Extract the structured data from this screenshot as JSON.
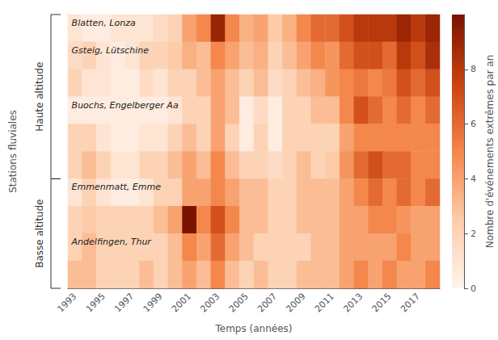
{
  "chart_data": {
    "type": "heatmap",
    "xlabel": "Temps (années)",
    "ylabel": "Stations fluviales",
    "categories": [
      1993,
      null,
      1995,
      null,
      1997,
      null,
      1999,
      null,
      2001,
      null,
      2003,
      null,
      2005,
      null,
      2007,
      null,
      2009,
      null,
      2011,
      null,
      2013,
      null,
      2015,
      null,
      2017,
      null
    ],
    "values": [
      [
        1.0,
        0.5,
        0.5,
        1.0,
        1.0,
        1.0,
        1.5,
        2.0,
        4.0,
        5.0,
        9.0,
        5.0,
        3.5,
        4.0,
        2.5,
        3.5,
        5.0,
        6.0,
        6.0,
        7.0,
        8.0,
        8.0,
        8.0,
        9.0,
        8.0,
        9.0
      ],
      [
        1.5,
        2.0,
        1.0,
        0.5,
        1.0,
        2.0,
        2.0,
        2.5,
        3.5,
        3.0,
        5.0,
        4.0,
        3.0,
        3.5,
        2.0,
        3.0,
        4.0,
        5.0,
        4.5,
        6.0,
        7.0,
        7.0,
        6.0,
        8.0,
        7.0,
        8.5
      ],
      [
        2.0,
        1.0,
        1.0,
        0.5,
        0.5,
        1.5,
        1.0,
        2.0,
        2.0,
        3.0,
        4.0,
        3.0,
        2.0,
        3.0,
        1.5,
        2.0,
        3.0,
        3.5,
        4.5,
        5.0,
        5.5,
        5.0,
        5.5,
        7.0,
        6.0,
        7.0
      ],
      [
        0.5,
        0.5,
        0.5,
        0.5,
        0.5,
        0.5,
        0.5,
        1.0,
        2.0,
        2.0,
        4.0,
        3.0,
        0.5,
        1.5,
        0.5,
        2.0,
        2.0,
        3.0,
        3.0,
        5.0,
        7.0,
        6.0,
        5.0,
        6.0,
        5.0,
        6.0
      ],
      [
        2.0,
        2.0,
        1.0,
        0.5,
        0.5,
        1.0,
        1.0,
        2.0,
        3.0,
        2.0,
        4.0,
        2.0,
        0.5,
        2.0,
        0.5,
        2.0,
        2.0,
        2.0,
        2.0,
        4.0,
        5.0,
        5.0,
        5.0,
        5.0,
        5.0,
        5.0
      ],
      [
        2.0,
        3.0,
        2.0,
        1.0,
        1.0,
        2.0,
        2.0,
        3.0,
        4.0,
        3.0,
        5.0,
        3.0,
        2.0,
        2.0,
        1.5,
        2.0,
        3.0,
        2.0,
        2.5,
        4.5,
        6.0,
        7.0,
        6.0,
        6.0,
        5.0,
        5.0
      ],
      [
        1.0,
        2.0,
        1.0,
        0.5,
        0.5,
        1.0,
        2.0,
        2.0,
        4.0,
        4.0,
        5.0,
        4.0,
        3.0,
        3.0,
        2.0,
        2.0,
        3.0,
        3.0,
        3.0,
        4.0,
        5.0,
        6.0,
        5.0,
        6.0,
        5.0,
        6.0
      ],
      [
        2.0,
        2.5,
        2.0,
        2.0,
        2.0,
        2.0,
        3.0,
        4.0,
        10.0,
        5.0,
        7.0,
        5.0,
        3.0,
        3.0,
        2.0,
        2.0,
        3.0,
        3.0,
        3.0,
        4.0,
        4.0,
        5.0,
        5.0,
        4.5,
        4.0,
        4.0
      ],
      [
        2.0,
        3.0,
        2.0,
        2.0,
        2.0,
        2.0,
        2.0,
        3.0,
        5.0,
        4.0,
        6.0,
        4.0,
        3.0,
        2.0,
        2.0,
        2.0,
        2.0,
        3.0,
        3.0,
        4.0,
        4.0,
        4.0,
        4.0,
        5.0,
        4.0,
        4.0
      ],
      [
        3.0,
        3.0,
        2.0,
        2.0,
        2.0,
        3.0,
        2.0,
        3.0,
        4.0,
        3.0,
        5.0,
        3.0,
        2.0,
        3.0,
        2.0,
        2.0,
        3.0,
        3.0,
        3.0,
        4.0,
        5.0,
        4.0,
        5.0,
        4.0,
        4.0,
        5.0
      ]
    ],
    "annotations": [
      {
        "text": "Blatten, Lonza",
        "row": 0
      },
      {
        "text": "Gsteig, Lütschine",
        "row": 1
      },
      {
        "text": "Buochs, Engelberger Aa",
        "row": 3
      },
      {
        "text": "Emmenmatt, Emme",
        "row": 6
      },
      {
        "text": "Andelfingen, Thur",
        "row": 8
      }
    ],
    "groups": [
      {
        "text": "Haute altitude",
        "rows": [
          0,
          5
        ]
      },
      {
        "text": "Basse altitude",
        "rows": [
          6,
          9
        ]
      }
    ],
    "colorbar": {
      "label": "Nombre d'événements extrêmes par an",
      "range": [
        0,
        10
      ],
      "ticks": [
        0,
        2,
        4,
        6,
        8
      ],
      "colors": [
        "#FEF4EE",
        "#FDCBA8",
        "#F4874B",
        "#C9420F",
        "#7A1400"
      ]
    },
    "tick_labels": "x"
  }
}
